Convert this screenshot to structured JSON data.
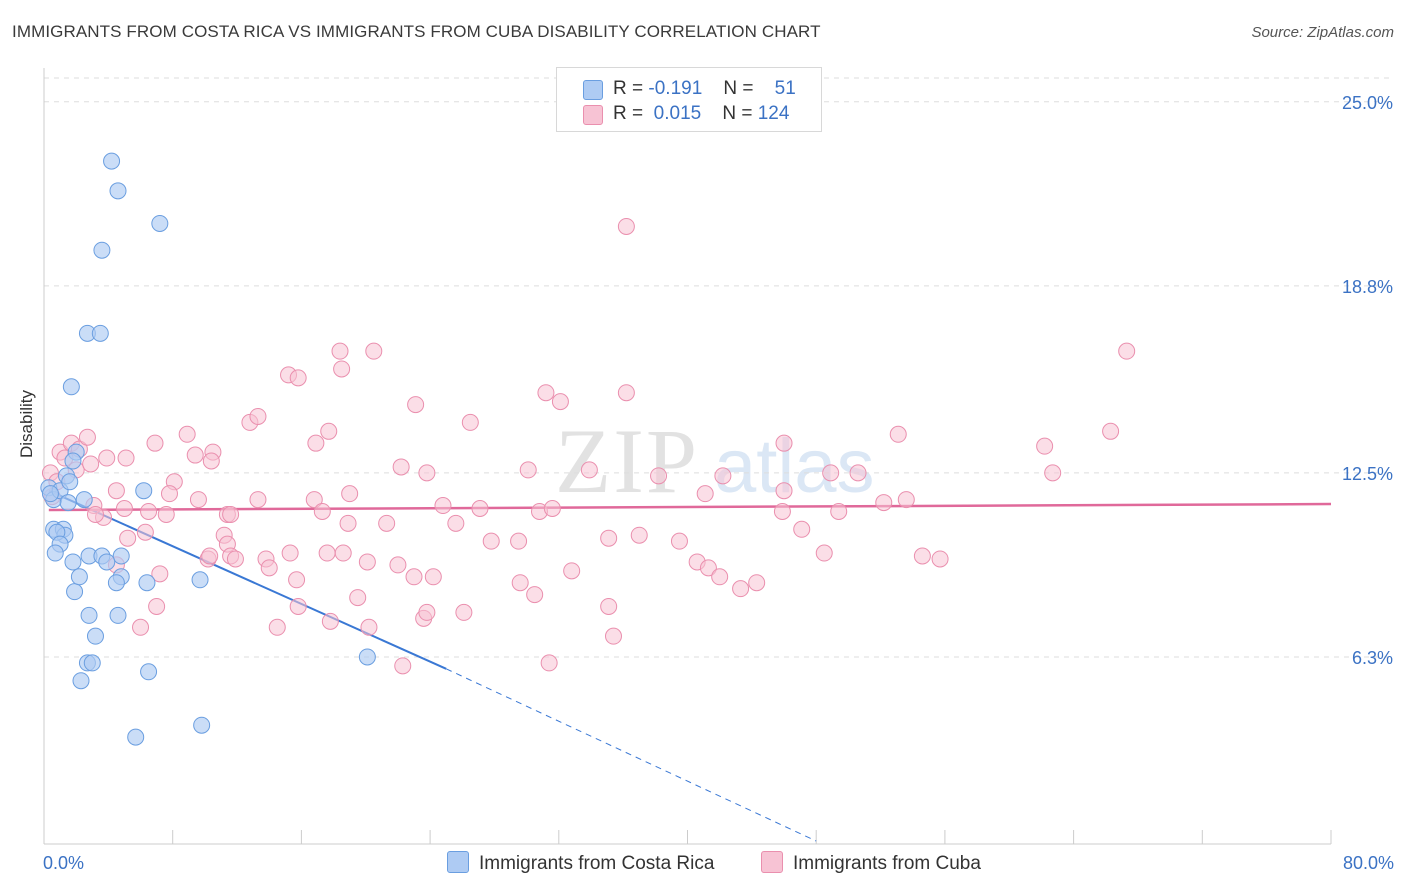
{
  "title": "IMMIGRANTS FROM COSTA RICA VS IMMIGRANTS FROM CUBA DISABILITY CORRELATION CHART",
  "source": "Source: ZipAtlas.com",
  "watermark": {
    "zip": "ZIP",
    "atlas": "atlas"
  },
  "legend": [
    {
      "r_label": "R =",
      "r_value": "-0.191",
      "n_label": "N =",
      "n_value": "51",
      "color": "#aecbf3"
    },
    {
      "r_label": "R =",
      "r_value": "0.015",
      "n_label": "N =",
      "n_value": "124",
      "color": "#f7bccf"
    }
  ],
  "colors": {
    "blue_fill": "#aecbf3",
    "blue_stroke": "#6a9ee0",
    "blue_line": "#3a78d4",
    "pink_fill": "#f7c3d4",
    "pink_stroke": "#ea8fae",
    "pink_line": "#e0699a",
    "grid": "#dddddd",
    "tick_text": "#3b72c4"
  },
  "chart_data": {
    "type": "scatter",
    "title": "IMMIGRANTS FROM COSTA RICA VS IMMIGRANTS FROM CUBA DISABILITY CORRELATION CHART",
    "xlabel": "",
    "ylabel": "Disability",
    "xlim": [
      0,
      80
    ],
    "ylim": [
      0,
      25.8
    ],
    "x_tick_labels": [
      "0.0%",
      "80.0%"
    ],
    "y_ticks": [
      6.3,
      12.5,
      18.8,
      25.0
    ],
    "y_tick_labels": [
      "6.3%",
      "12.5%",
      "18.8%",
      "25.0%"
    ],
    "grid": true,
    "legend_position": "top-center",
    "series": [
      {
        "name": "Immigrants from Costa Rica",
        "color": "#aecbf3",
        "trend": {
          "x0": 0.3,
          "y0": 11.9,
          "x1": 25.0,
          "y1": 5.9,
          "dash_to_x": 48.0,
          "dash_to_y": 0.1
        },
        "points": [
          [
            4.2,
            23.0
          ],
          [
            4.6,
            22.0
          ],
          [
            7.2,
            20.9
          ],
          [
            3.6,
            20.0
          ],
          [
            2.7,
            17.2
          ],
          [
            3.5,
            17.2
          ],
          [
            1.7,
            15.4
          ],
          [
            0.3,
            12.0
          ],
          [
            0.6,
            11.6
          ],
          [
            1.0,
            11.9
          ],
          [
            1.4,
            12.4
          ],
          [
            1.6,
            12.2
          ],
          [
            2.0,
            13.2
          ],
          [
            1.8,
            12.9
          ],
          [
            2.5,
            11.6
          ],
          [
            1.5,
            11.5
          ],
          [
            0.4,
            11.8
          ],
          [
            6.2,
            11.9
          ],
          [
            0.6,
            10.6
          ],
          [
            1.2,
            10.6
          ],
          [
            1.3,
            10.4
          ],
          [
            0.8,
            10.5
          ],
          [
            1.0,
            10.1
          ],
          [
            0.7,
            9.8
          ],
          [
            1.8,
            9.5
          ],
          [
            2.8,
            9.7
          ],
          [
            3.6,
            9.7
          ],
          [
            4.8,
            9.7
          ],
          [
            3.9,
            9.5
          ],
          [
            4.8,
            9.0
          ],
          [
            4.5,
            8.8
          ],
          [
            6.4,
            8.8
          ],
          [
            9.7,
            8.9
          ],
          [
            1.9,
            8.5
          ],
          [
            2.8,
            7.7
          ],
          [
            4.6,
            7.7
          ],
          [
            3.2,
            7.0
          ],
          [
            2.7,
            6.1
          ],
          [
            3.0,
            6.1
          ],
          [
            6.5,
            5.8
          ],
          [
            2.3,
            5.5
          ],
          [
            20.1,
            6.3
          ],
          [
            5.7,
            3.6
          ],
          [
            9.8,
            4.0
          ],
          [
            2.2,
            9.0
          ]
        ]
      },
      {
        "name": "Immigrants from Cuba",
        "color": "#f7bccf",
        "trend": {
          "x0": 0.3,
          "y0": 11.25,
          "x1": 80.0,
          "y1": 11.45
        },
        "points": [
          [
            0.4,
            12.5
          ],
          [
            0.8,
            12.2
          ],
          [
            1.0,
            13.2
          ],
          [
            1.3,
            13.0
          ],
          [
            1.7,
            13.5
          ],
          [
            2.2,
            13.3
          ],
          [
            2.7,
            13.7
          ],
          [
            2.0,
            12.6
          ],
          [
            2.9,
            12.8
          ],
          [
            3.9,
            13.0
          ],
          [
            5.1,
            13.0
          ],
          [
            6.9,
            13.5
          ],
          [
            8.9,
            13.8
          ],
          [
            9.4,
            13.1
          ],
          [
            10.5,
            13.2
          ],
          [
            10.4,
            12.9
          ],
          [
            12.8,
            14.2
          ],
          [
            13.3,
            14.4
          ],
          [
            15.2,
            15.8
          ],
          [
            15.8,
            15.7
          ],
          [
            16.9,
            13.5
          ],
          [
            17.7,
            13.9
          ],
          [
            18.5,
            16.0
          ],
          [
            18.4,
            16.6
          ],
          [
            20.5,
            16.6
          ],
          [
            23.1,
            14.8
          ],
          [
            26.5,
            14.2
          ],
          [
            22.2,
            12.7
          ],
          [
            23.8,
            12.5
          ],
          [
            31.2,
            15.2
          ],
          [
            36.2,
            15.2
          ],
          [
            33.9,
            12.6
          ],
          [
            38.2,
            12.4
          ],
          [
            30.1,
            12.6
          ],
          [
            32.1,
            14.9
          ],
          [
            36.2,
            20.8
          ],
          [
            42.2,
            12.4
          ],
          [
            45.9,
            11.2
          ],
          [
            46.0,
            13.5
          ],
          [
            48.9,
            12.5
          ],
          [
            50.6,
            12.5
          ],
          [
            53.6,
            11.6
          ],
          [
            53.1,
            13.8
          ],
          [
            62.2,
            13.4
          ],
          [
            62.7,
            12.5
          ],
          [
            66.3,
            13.9
          ],
          [
            67.3,
            16.6
          ],
          [
            3.7,
            11.0
          ],
          [
            4.5,
            11.9
          ],
          [
            5.0,
            11.3
          ],
          [
            6.5,
            11.2
          ],
          [
            7.6,
            11.1
          ],
          [
            8.1,
            12.2
          ],
          [
            7.8,
            11.8
          ],
          [
            9.6,
            11.6
          ],
          [
            11.4,
            11.1
          ],
          [
            11.6,
            11.1
          ],
          [
            13.3,
            11.6
          ],
          [
            16.8,
            11.6
          ],
          [
            17.3,
            11.2
          ],
          [
            19.0,
            11.8
          ],
          [
            24.8,
            11.4
          ],
          [
            27.1,
            11.3
          ],
          [
            30.8,
            11.2
          ],
          [
            31.6,
            11.3
          ],
          [
            41.1,
            11.8
          ],
          [
            46.0,
            11.9
          ],
          [
            49.4,
            11.2
          ],
          [
            52.2,
            11.5
          ],
          [
            3.1,
            11.4
          ],
          [
            3.2,
            11.1
          ],
          [
            0.5,
            11.7
          ],
          [
            6.3,
            10.5
          ],
          [
            5.2,
            10.3
          ],
          [
            11.2,
            10.4
          ],
          [
            11.4,
            10.1
          ],
          [
            11.6,
            9.7
          ],
          [
            11.9,
            9.6
          ],
          [
            10.2,
            9.6
          ],
          [
            10.3,
            9.7
          ],
          [
            13.8,
            9.6
          ],
          [
            15.3,
            9.8
          ],
          [
            17.6,
            9.8
          ],
          [
            18.6,
            9.8
          ],
          [
            20.1,
            9.5
          ],
          [
            21.3,
            10.8
          ],
          [
            18.9,
            10.8
          ],
          [
            22.0,
            9.4
          ],
          [
            23.0,
            9.0
          ],
          [
            24.2,
            9.0
          ],
          [
            25.6,
            10.8
          ],
          [
            27.8,
            10.2
          ],
          [
            29.5,
            10.2
          ],
          [
            29.6,
            8.8
          ],
          [
            30.5,
            8.4
          ],
          [
            32.8,
            9.2
          ],
          [
            35.1,
            10.3
          ],
          [
            37.0,
            10.4
          ],
          [
            39.5,
            10.2
          ],
          [
            40.6,
            9.5
          ],
          [
            41.3,
            9.3
          ],
          [
            43.3,
            8.6
          ],
          [
            42.0,
            9.0
          ],
          [
            44.3,
            8.8
          ],
          [
            47.1,
            10.6
          ],
          [
            48.5,
            9.8
          ],
          [
            54.6,
            9.7
          ],
          [
            55.7,
            9.6
          ],
          [
            4.5,
            9.4
          ],
          [
            7.2,
            9.1
          ],
          [
            14.0,
            9.3
          ],
          [
            15.7,
            8.9
          ],
          [
            14.5,
            7.3
          ],
          [
            7.0,
            8.0
          ],
          [
            15.8,
            8.0
          ],
          [
            17.8,
            7.5
          ],
          [
            19.5,
            8.3
          ],
          [
            20.2,
            7.3
          ],
          [
            23.6,
            7.6
          ],
          [
            23.8,
            7.8
          ],
          [
            26.1,
            7.8
          ],
          [
            35.1,
            8.0
          ],
          [
            35.4,
            7.0
          ],
          [
            31.4,
            6.1
          ],
          [
            22.3,
            6.0
          ],
          [
            6.0,
            7.3
          ]
        ]
      }
    ]
  },
  "bottom_legend": [
    "Immigrants from Costa Rica",
    "Immigrants from Cuba"
  ],
  "x_tick_left": "0.0%",
  "x_tick_right": "80.0%"
}
